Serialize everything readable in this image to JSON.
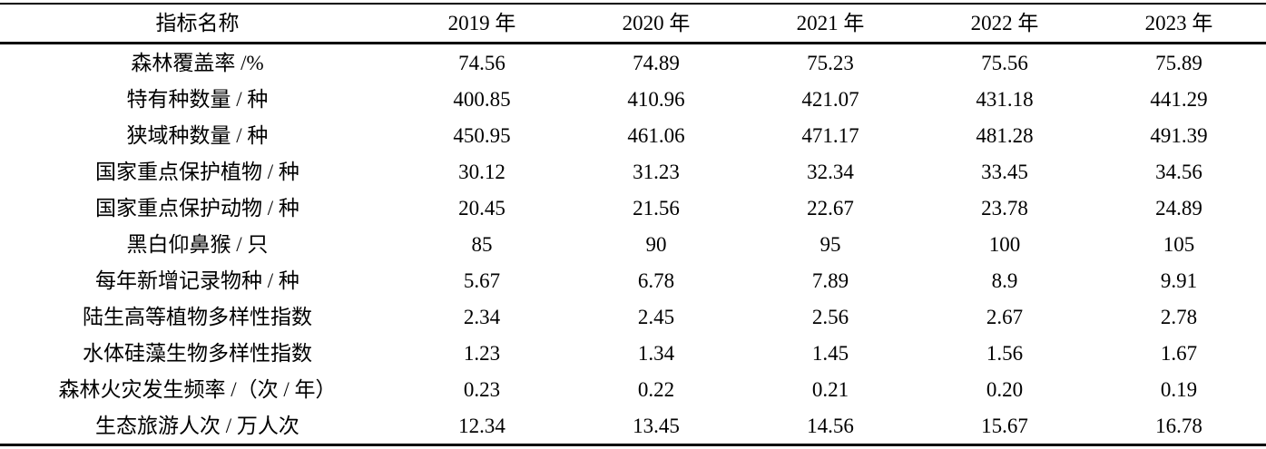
{
  "colors": {
    "background": "#ffffff",
    "text": "#000000",
    "rule": "#000000"
  },
  "table": {
    "columns": [
      "指标名称",
      "2019 年",
      "2020 年",
      "2021 年",
      "2022 年",
      "2023 年"
    ],
    "rows": [
      {
        "label": "森林覆盖率 /%",
        "values": [
          "74.56",
          "74.89",
          "75.23",
          "75.56",
          "75.89"
        ]
      },
      {
        "label": "特有种数量 / 种",
        "values": [
          "400.85",
          "410.96",
          "421.07",
          "431.18",
          "441.29"
        ]
      },
      {
        "label": "狭域种数量 / 种",
        "values": [
          "450.95",
          "461.06",
          "471.17",
          "481.28",
          "491.39"
        ]
      },
      {
        "label": "国家重点保护植物 / 种",
        "values": [
          "30.12",
          "31.23",
          "32.34",
          "33.45",
          "34.56"
        ]
      },
      {
        "label": "国家重点保护动物 / 种",
        "values": [
          "20.45",
          "21.56",
          "22.67",
          "23.78",
          "24.89"
        ]
      },
      {
        "label": "黑白仰鼻猴 / 只",
        "values": [
          "85",
          "90",
          "95",
          "100",
          "105"
        ]
      },
      {
        "label": "每年新增记录物种 / 种",
        "values": [
          "5.67",
          "6.78",
          "7.89",
          "8.9",
          "9.91"
        ]
      },
      {
        "label": "陆生高等植物多样性指数",
        "values": [
          "2.34",
          "2.45",
          "2.56",
          "2.67",
          "2.78"
        ]
      },
      {
        "label": "水体硅藻生物多样性指数",
        "values": [
          "1.23",
          "1.34",
          "1.45",
          "1.56",
          "1.67"
        ]
      },
      {
        "label": "森林火灾发生频率 /（次 / 年）",
        "values": [
          "0.23",
          "0.22",
          "0.21",
          "0.20",
          "0.19"
        ]
      },
      {
        "label": "生态旅游人次 / 万人次",
        "values": [
          "12.34",
          "13.45",
          "14.56",
          "15.67",
          "16.78"
        ]
      }
    ]
  }
}
